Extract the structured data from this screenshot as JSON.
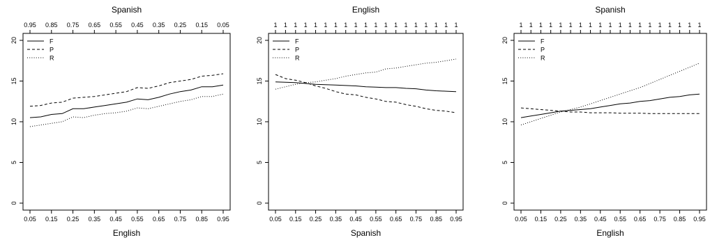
{
  "chart_data": [
    {
      "type": "line",
      "title": "Spanish",
      "xlabel": "English",
      "ylabel": "",
      "x": [
        0.05,
        0.1,
        0.15,
        0.2,
        0.25,
        0.3,
        0.35,
        0.4,
        0.45,
        0.5,
        0.55,
        0.6,
        0.65,
        0.7,
        0.75,
        0.8,
        0.85,
        0.9,
        0.95
      ],
      "xticks": [
        "0.05",
        "0.15",
        "0.25",
        "0.35",
        "0.45",
        "0.55",
        "0.65",
        "0.75",
        "0.85",
        "0.95"
      ],
      "top_axis_ticks": [
        "0.95",
        "0.85",
        "0.75",
        "0.65",
        "0.55",
        "0.45",
        "0.35",
        "0.25",
        "0.15",
        "0.05"
      ],
      "yticks": [
        "0",
        "5",
        "10",
        "15",
        "20"
      ],
      "xlim": [
        0.05,
        0.95
      ],
      "ylim": [
        0,
        20
      ],
      "legend": "top-left",
      "series": [
        {
          "name": "F",
          "style": "solid",
          "values": [
            10.5,
            10.6,
            10.9,
            11.0,
            11.6,
            11.6,
            11.8,
            12.0,
            12.2,
            12.4,
            12.8,
            12.7,
            13.0,
            13.4,
            13.7,
            13.9,
            14.3,
            14.3,
            14.5
          ]
        },
        {
          "name": "P",
          "style": "dashed",
          "values": [
            11.9,
            12.0,
            12.3,
            12.4,
            12.9,
            13.0,
            13.1,
            13.3,
            13.5,
            13.7,
            14.2,
            14.1,
            14.4,
            14.8,
            15.0,
            15.2,
            15.6,
            15.7,
            15.9
          ]
        },
        {
          "name": "R",
          "style": "dotted",
          "values": [
            9.4,
            9.6,
            9.8,
            10.0,
            10.6,
            10.5,
            10.8,
            11.0,
            11.1,
            11.3,
            11.7,
            11.6,
            11.9,
            12.2,
            12.5,
            12.7,
            13.1,
            13.1,
            13.4
          ]
        }
      ]
    },
    {
      "type": "line",
      "title": "English",
      "xlabel": "Spanish",
      "ylabel": "",
      "x": [
        0.05,
        0.1,
        0.15,
        0.2,
        0.25,
        0.3,
        0.35,
        0.4,
        0.45,
        0.5,
        0.55,
        0.6,
        0.65,
        0.7,
        0.75,
        0.8,
        0.85,
        0.9,
        0.95
      ],
      "xticks": [
        "0.05",
        "0.15",
        "0.25",
        "0.35",
        "0.45",
        "0.55",
        "0.65",
        "0.75",
        "0.85",
        "0.95"
      ],
      "top_axis_ticks": [
        "1",
        "1",
        "1",
        "1",
        "1",
        "1",
        "1",
        "1",
        "1",
        "1",
        "1",
        "1",
        "1",
        "1",
        "1",
        "1",
        "1",
        "1",
        "1"
      ],
      "yticks": [
        "0",
        "5",
        "10",
        "15",
        "20"
      ],
      "xlim": [
        0.05,
        0.95
      ],
      "ylim": [
        0,
        20
      ],
      "legend": "top-left",
      "series": [
        {
          "name": "F",
          "style": "solid",
          "values": [
            14.9,
            14.85,
            14.8,
            14.7,
            14.6,
            14.55,
            14.5,
            14.45,
            14.4,
            14.3,
            14.25,
            14.2,
            14.2,
            14.1,
            14.05,
            13.9,
            13.8,
            13.75,
            13.7
          ]
        },
        {
          "name": "P",
          "style": "dashed",
          "values": [
            15.8,
            15.3,
            15.1,
            14.8,
            14.4,
            14.1,
            13.7,
            13.4,
            13.3,
            13.0,
            12.8,
            12.5,
            12.4,
            12.1,
            11.9,
            11.6,
            11.4,
            11.3,
            11.1
          ]
        },
        {
          "name": "R",
          "style": "dotted",
          "values": [
            14.0,
            14.3,
            14.6,
            14.8,
            14.9,
            15.1,
            15.3,
            15.6,
            15.8,
            16.0,
            16.1,
            16.5,
            16.6,
            16.8,
            17.0,
            17.2,
            17.3,
            17.5,
            17.7
          ]
        }
      ]
    },
    {
      "type": "line",
      "title": "Spanish",
      "xlabel": "English",
      "ylabel": "",
      "x": [
        0.05,
        0.1,
        0.15,
        0.2,
        0.25,
        0.3,
        0.35,
        0.4,
        0.45,
        0.5,
        0.55,
        0.6,
        0.65,
        0.7,
        0.75,
        0.8,
        0.85,
        0.9,
        0.95
      ],
      "xticks": [
        "0.05",
        "0.15",
        "0.25",
        "0.35",
        "0.45",
        "0.55",
        "0.65",
        "0.75",
        "0.85",
        "0.95"
      ],
      "top_axis_ticks": [
        "1",
        "1",
        "1",
        "1",
        "1",
        "1",
        "1",
        "1",
        "1",
        "1",
        "1",
        "1",
        "1",
        "1",
        "1",
        "1",
        "1",
        "1",
        "1"
      ],
      "yticks": [
        "0",
        "5",
        "10",
        "15",
        "20"
      ],
      "xlim": [
        0.05,
        0.95
      ],
      "ylim": [
        0,
        20
      ],
      "legend": "top-left",
      "series": [
        {
          "name": "F",
          "style": "solid",
          "values": [
            10.5,
            10.7,
            10.9,
            11.1,
            11.3,
            11.4,
            11.5,
            11.6,
            11.8,
            12.0,
            12.2,
            12.3,
            12.5,
            12.6,
            12.8,
            13.0,
            13.1,
            13.3,
            13.4
          ]
        },
        {
          "name": "P",
          "style": "dashed",
          "values": [
            11.7,
            11.6,
            11.5,
            11.4,
            11.3,
            11.2,
            11.2,
            11.1,
            11.1,
            11.1,
            11.05,
            11.05,
            11.05,
            11.0,
            11.0,
            11.0,
            11.0,
            11.0,
            11.0
          ]
        },
        {
          "name": "R",
          "style": "dotted",
          "values": [
            9.6,
            10.0,
            10.4,
            10.8,
            11.2,
            11.5,
            11.8,
            12.2,
            12.6,
            13.0,
            13.4,
            13.8,
            14.2,
            14.7,
            15.2,
            15.7,
            16.2,
            16.7,
            17.2
          ]
        }
      ]
    }
  ]
}
